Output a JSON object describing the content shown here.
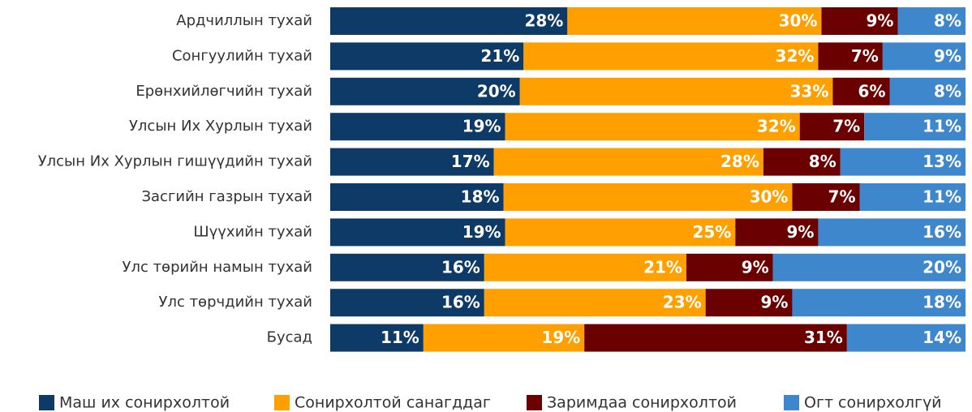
{
  "chart_data": {
    "type": "bar",
    "orientation": "horizontal",
    "stacked": "percent",
    "categories": [
      "Ардчиллын тухай",
      "Сонгуулийн тухай",
      "Ерөнхийлөгчийн тухай",
      "Улсын Их Хурлын тухай",
      "Улсын Их Хурлын гишүүдийн тухай",
      "Засгийн газрын тухай",
      "Шүүхийн тухай",
      "Улс төрийн намын тухай",
      "Улс төрчдийн тухай",
      "Бусад"
    ],
    "series": [
      {
        "name": "Маш их сонирхолтой",
        "color": "#0d3a66",
        "values": [
          28,
          21,
          20,
          19,
          17,
          18,
          19,
          16,
          16,
          11
        ],
        "value_labels": [
          "28%",
          "21%",
          "20%",
          "19%",
          "17%",
          "18%",
          "19%",
          "16%",
          "16%",
          "11%"
        ]
      },
      {
        "name": "Сонирхолтой санагддаг",
        "color": "#ffa000",
        "values": [
          30,
          32,
          33,
          32,
          28,
          30,
          25,
          21,
          23,
          19
        ],
        "value_labels": [
          "30%",
          "32%",
          "33%",
          "32%",
          "28%",
          "30%",
          "25%",
          "21%",
          "23%",
          "19%"
        ]
      },
      {
        "name": "Заримдаа сонирхолтой",
        "color": "#6b0000",
        "values": [
          9,
          7,
          6,
          7,
          8,
          7,
          9,
          9,
          9,
          31
        ],
        "value_labels": [
          "9%",
          "7%",
          "6%",
          "7%",
          "8%",
          "7%",
          "9%",
          "9%",
          "9%",
          "31%"
        ]
      },
      {
        "name": "Огт сонирхолгүй",
        "color": "#3f87cc",
        "values": [
          8,
          9,
          8,
          11,
          13,
          11,
          16,
          20,
          18,
          14
        ],
        "value_labels": [
          "8%",
          "9%",
          "8%",
          "11%",
          "13%",
          "11%",
          "16%",
          "20%",
          "18%",
          "14%"
        ]
      }
    ],
    "legend": "bottom"
  }
}
